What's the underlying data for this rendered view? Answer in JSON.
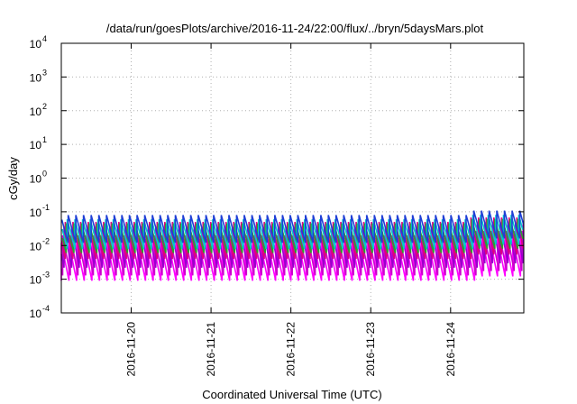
{
  "chart_data": {
    "type": "line",
    "title": "/data/run/goesPlots/archive/2016-11-24/22:00/flux/../bryn/5daysMars.plot",
    "xlabel": "Coordinated Universal Time (UTC)",
    "ylabel": "cGy/day",
    "yscale": "log",
    "ylim": [
      0.0001,
      10000
    ],
    "xlim": [
      "2016-11-19 03:00",
      "2016-11-24 22:00"
    ],
    "grid": true,
    "legend": "none",
    "y_ticks": [
      {
        "value": 0.0001,
        "base": "10",
        "exp": "-4"
      },
      {
        "value": 0.001,
        "base": "10",
        "exp": "-3"
      },
      {
        "value": 0.01,
        "base": "10",
        "exp": "-2"
      },
      {
        "value": 0.1,
        "base": "10",
        "exp": "-1"
      },
      {
        "value": 1,
        "base": "10",
        "exp": "0"
      },
      {
        "value": 10,
        "base": "10",
        "exp": "1"
      },
      {
        "value": 100,
        "base": "10",
        "exp": "2"
      },
      {
        "value": 1000,
        "base": "10",
        "exp": "3"
      },
      {
        "value": 10000,
        "base": "10",
        "exp": "4"
      }
    ],
    "x_ticks": [
      {
        "label": "2016-11-20",
        "value": "2016-11-20 00:00"
      },
      {
        "label": "2016-11-21",
        "value": "2016-11-21 00:00"
      },
      {
        "label": "2016-11-22",
        "value": "2016-11-22 00:00"
      },
      {
        "label": "2016-11-23",
        "value": "2016-11-23 00:00"
      },
      {
        "label": "2016-11-24",
        "value": "2016-11-24 00:00"
      }
    ],
    "series": [
      {
        "color": "#ff00ff",
        "peak": 0.012,
        "trough": 0.0009,
        "phase": 0.0
      },
      {
        "color": "#cc00cc",
        "peak": 0.02,
        "trough": 0.0013,
        "phase": 0.18
      },
      {
        "color": "#9900cc",
        "peak": 0.035,
        "trough": 0.0022,
        "phase": 0.35
      },
      {
        "color": "#e0007f",
        "peak": 0.05,
        "trough": 0.004,
        "phase": 0.52
      },
      {
        "color": "#2ca02c",
        "peak": 0.045,
        "trough": 0.006,
        "phase": 0.65
      },
      {
        "color": "#00cccc",
        "peak": 0.06,
        "trough": 0.008,
        "phase": 0.78
      },
      {
        "color": "#1f3fd6",
        "peak": 0.08,
        "trough": 0.012,
        "phase": 0.9
      }
    ],
    "sawtooth_period_hours": 2.3,
    "late_period_boost_from": "2016-11-24 06:00"
  }
}
